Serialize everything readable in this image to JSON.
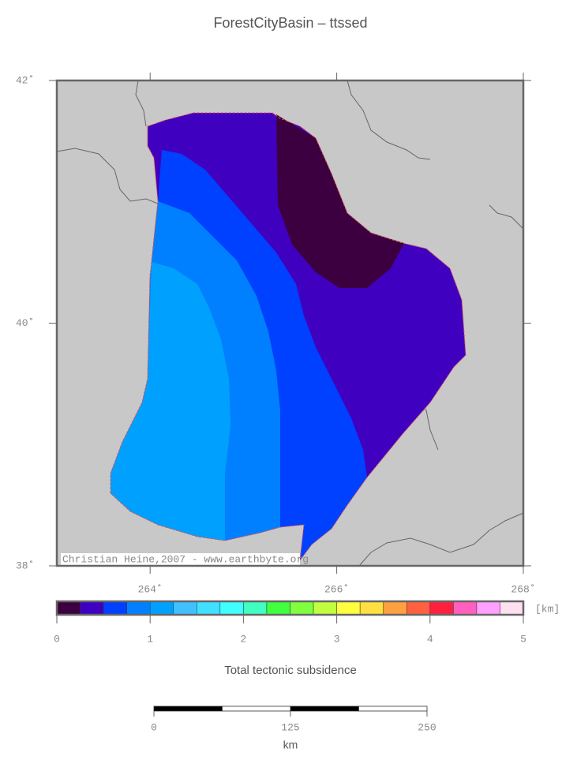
{
  "title": "ForestCityBasin – ttssed",
  "map": {
    "lonlim": [
      263,
      268
    ],
    "latlim": [
      38,
      42
    ],
    "lon_ticks": [
      {
        "value": 264,
        "label": "264˚"
      },
      {
        "value": 266,
        "label": "266˚"
      },
      {
        "value": 268,
        "label": "268˚"
      }
    ],
    "lat_ticks": [
      {
        "value": 38,
        "label": "38˚"
      },
      {
        "value": 40,
        "label": "40˚"
      },
      {
        "value": 42,
        "label": "42˚"
      }
    ],
    "credit": "Christian Heine,2007 - www.earthbyte.org"
  },
  "colorbar": {
    "range": [
      0,
      5
    ],
    "colors": [
      "#3c0040",
      "#4000c0",
      "#0040ff",
      "#0080ff",
      "#00a0ff",
      "#40c0ff",
      "#40e0ff",
      "#40ffff",
      "#40ffc0",
      "#40ff40",
      "#80ff40",
      "#c0ff40",
      "#ffff40",
      "#ffe040",
      "#ffa040",
      "#ff6040",
      "#ff2040",
      "#ff60c0",
      "#ffa0ff",
      "#ffe0f0"
    ],
    "ticks": [
      0,
      1,
      2,
      3,
      4,
      5
    ],
    "unit": "[km]",
    "label": "Total tectonic subsidence"
  },
  "scalebar": {
    "range": [
      0,
      250
    ],
    "ticks": [
      0,
      125,
      250
    ],
    "unit": "km"
  }
}
